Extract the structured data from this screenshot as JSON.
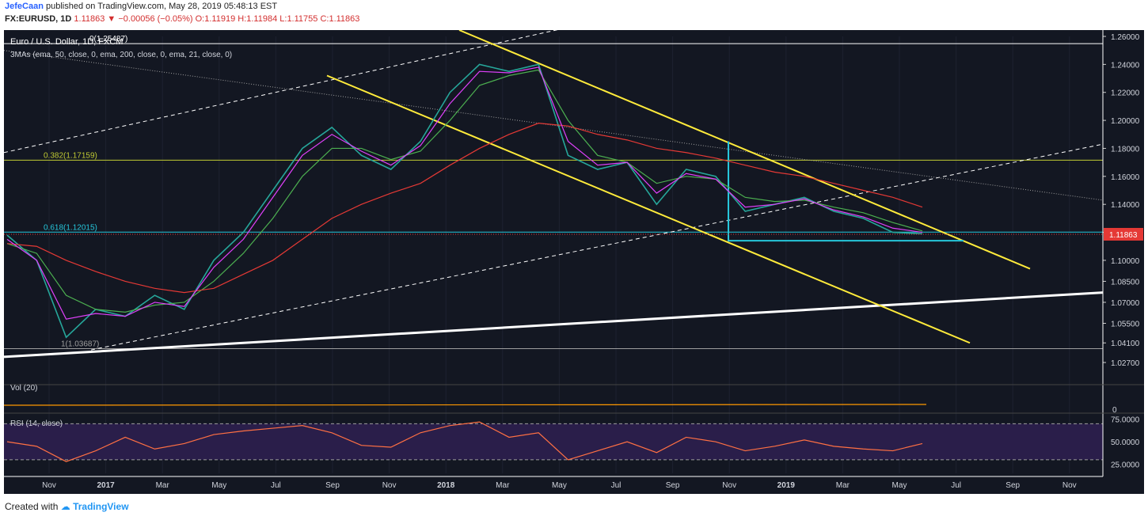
{
  "header": {
    "author": "JefeCaan",
    "published_text": "published on TradingView.com, May 28, 2019 05:48:13 EST",
    "symbol": "FX:EURUSD, 1D",
    "last": "1.11863",
    "change": "−0.00056 (−0.05%)",
    "ohlc": {
      "o": "O:1.11919",
      "h": "H:1.11984",
      "l": "L:1.11755",
      "c": "C:1.11863"
    }
  },
  "footer": {
    "created_with": "Created with",
    "brand": "TradingView"
  },
  "chart_data": {
    "type": "line",
    "title": "Euro / U.S. Dollar, 1D, FXCM",
    "indicator_label": "3MAs (ema, 50, close, 0, ema, 200, close, 0, ema, 21, close, 0)",
    "price_axis": {
      "ylim": [
        1.027,
        1.26
      ],
      "ticks": [
        "1.26000",
        "1.24000",
        "1.22000",
        "1.20000",
        "1.18000",
        "1.16000",
        "1.14000",
        "1.12000",
        "1.11863",
        "1.10000",
        "1.08500",
        "1.07000",
        "1.05500",
        "1.04100",
        "1.02700"
      ],
      "last_price": "1.11863"
    },
    "x_axis": {
      "labels": [
        "Nov",
        "2017",
        "Mar",
        "May",
        "Jul",
        "Sep",
        "Nov",
        "2018",
        "Mar",
        "May",
        "Jul",
        "Sep",
        "Nov",
        "2019",
        "Mar",
        "May",
        "Jul",
        "Sep",
        "Nov"
      ]
    },
    "fib_levels": [
      {
        "label": "0(1.25487)",
        "value": 1.25487,
        "color": "#ffffff"
      },
      {
        "label": "0.382(1.17159)",
        "value": 1.17159,
        "color": "#c0ca33"
      },
      {
        "label": "0.618(1.12015)",
        "value": 1.12015,
        "color": "#26c6da"
      },
      {
        "label": "1(1.03687)",
        "value": 1.03687,
        "color": "#9e9e9e"
      }
    ],
    "series": [
      {
        "name": "EURUSD",
        "color": "#26a69a",
        "x": [
          "2016-10",
          "2016-11",
          "2016-12",
          "2017-01",
          "2017-02",
          "2017-03",
          "2017-04",
          "2017-05",
          "2017-06",
          "2017-07",
          "2017-08",
          "2017-09",
          "2017-10",
          "2017-11",
          "2017-12",
          "2018-01",
          "2018-02",
          "2018-03",
          "2018-04",
          "2018-05",
          "2018-06",
          "2018-07",
          "2018-08",
          "2018-09",
          "2018-10",
          "2018-11",
          "2018-12",
          "2019-01",
          "2019-02",
          "2019-03",
          "2019-04",
          "2019-05"
        ],
        "values": [
          1.118,
          1.1,
          1.045,
          1.065,
          1.06,
          1.075,
          1.065,
          1.1,
          1.12,
          1.15,
          1.18,
          1.195,
          1.175,
          1.165,
          1.185,
          1.22,
          1.24,
          1.235,
          1.24,
          1.175,
          1.165,
          1.17,
          1.14,
          1.165,
          1.16,
          1.135,
          1.14,
          1.145,
          1.135,
          1.13,
          1.12,
          1.119
        ]
      },
      {
        "name": "ema 50",
        "color": "#4caf50",
        "values": [
          1.112,
          1.105,
          1.075,
          1.065,
          1.063,
          1.068,
          1.07,
          1.085,
          1.105,
          1.13,
          1.16,
          1.18,
          1.18,
          1.172,
          1.178,
          1.2,
          1.225,
          1.232,
          1.236,
          1.2,
          1.175,
          1.17,
          1.155,
          1.16,
          1.158,
          1.145,
          1.142,
          1.143,
          1.138,
          1.134,
          1.127,
          1.121
        ]
      },
      {
        "name": "ema 200",
        "color": "#e53935",
        "values": [
          1.112,
          1.11,
          1.1,
          1.092,
          1.085,
          1.08,
          1.077,
          1.08,
          1.09,
          1.1,
          1.115,
          1.13,
          1.14,
          1.148,
          1.155,
          1.168,
          1.18,
          1.19,
          1.198,
          1.196,
          1.19,
          1.186,
          1.18,
          1.177,
          1.173,
          1.168,
          1.163,
          1.16,
          1.155,
          1.15,
          1.145,
          1.138
        ]
      },
      {
        "name": "ema 21",
        "color": "#e040fb",
        "values": [
          1.115,
          1.1,
          1.058,
          1.062,
          1.06,
          1.07,
          1.067,
          1.095,
          1.115,
          1.145,
          1.175,
          1.19,
          1.178,
          1.168,
          1.182,
          1.212,
          1.235,
          1.234,
          1.238,
          1.185,
          1.168,
          1.17,
          1.148,
          1.162,
          1.158,
          1.138,
          1.14,
          1.144,
          1.136,
          1.131,
          1.123,
          1.12
        ]
      }
    ],
    "volume": {
      "label": "Vol (20)",
      "axis_tick": "0"
    },
    "rsi": {
      "label": "RSI (14, close)",
      "ylim": [
        15,
        80
      ],
      "ticks": [
        "75.0000",
        "50.0000",
        "25.0000"
      ],
      "bands": [
        70,
        30
      ],
      "values": [
        50,
        45,
        28,
        40,
        55,
        42,
        48,
        58,
        62,
        65,
        68,
        60,
        46,
        44,
        60,
        68,
        72,
        55,
        60,
        30,
        40,
        50,
        38,
        55,
        50,
        40,
        45,
        52,
        45,
        42,
        40,
        48
      ]
    }
  }
}
